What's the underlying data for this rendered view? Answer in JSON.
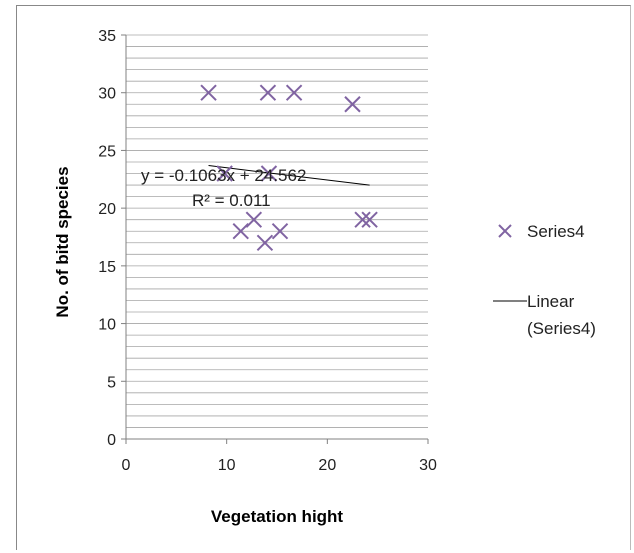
{
  "chart_data": {
    "type": "scatter",
    "title": "",
    "xlabel": "Vegetation  hight",
    "ylabel": "No. of bitd species",
    "xlim": [
      0,
      30
    ],
    "ylim": [
      0,
      35
    ],
    "x_ticks": [
      "0",
      "10",
      "20",
      "30"
    ],
    "y_ticks": [
      "0",
      "5",
      "10",
      "15",
      "20",
      "25",
      "30",
      "35"
    ],
    "grid": "horizontal minor lines",
    "legend_placement": "right",
    "marker_color": "#8064a2",
    "series": [
      {
        "name": "Series4",
        "marker": "x",
        "points": [
          {
            "x": 8.2,
            "y": 30
          },
          {
            "x": 14.1,
            "y": 30
          },
          {
            "x": 16.7,
            "y": 30
          },
          {
            "x": 22.5,
            "y": 29
          },
          {
            "x": 9.8,
            "y": 23
          },
          {
            "x": 14.2,
            "y": 23
          },
          {
            "x": 12.7,
            "y": 19
          },
          {
            "x": 11.4,
            "y": 18
          },
          {
            "x": 15.3,
            "y": 18
          },
          {
            "x": 13.8,
            "y": 17
          },
          {
            "x": 23.5,
            "y": 19
          },
          {
            "x": 24.2,
            "y": 19
          }
        ]
      }
    ],
    "trendline": {
      "name": "Linear (Series4)",
      "slope": -0.1063,
      "intercept": 24.562,
      "x_range": [
        8.2,
        24.2
      ],
      "equation_label": "y = -0.1063x + 24.562",
      "r2_label": "R² = 0.011"
    },
    "legend": [
      {
        "label": "Series4",
        "kind": "marker"
      },
      {
        "label_line1": "Linear",
        "label_line2": "(Series4)",
        "kind": "line"
      }
    ]
  }
}
